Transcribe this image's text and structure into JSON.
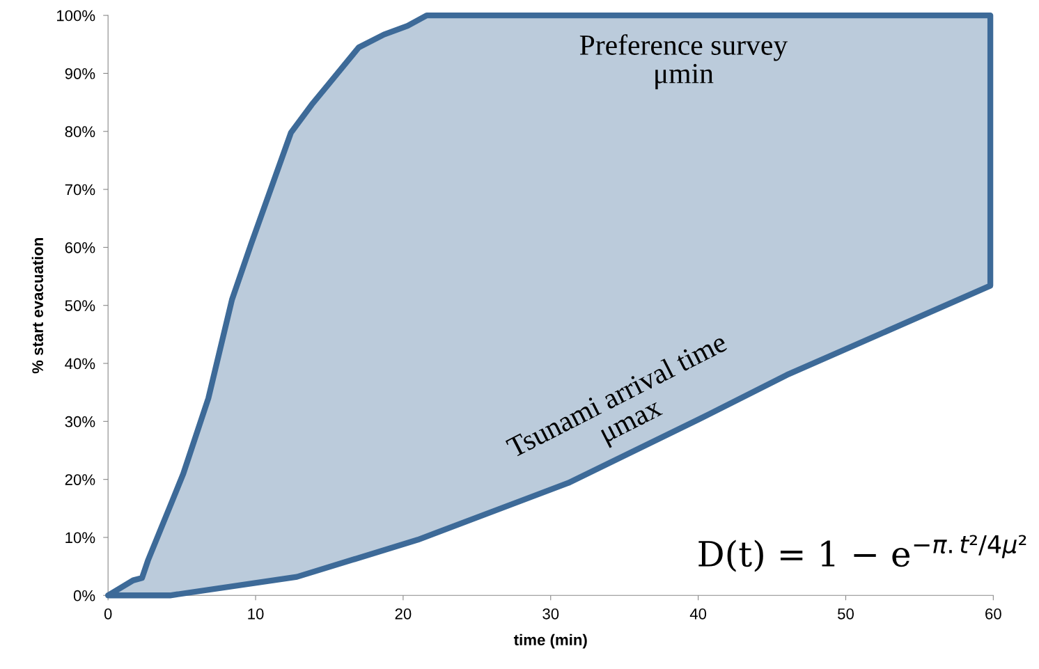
{
  "chart_data": {
    "type": "area",
    "xlabel": "time (min)",
    "ylabel": "% start evacuation",
    "xlim": [
      0,
      60
    ],
    "xticks": [
      0,
      10,
      20,
      30,
      40,
      50,
      60
    ],
    "ylim": [
      0,
      100
    ],
    "yticks": [
      {
        "value": 0,
        "label": "0%"
      },
      {
        "value": 10,
        "label": "10%"
      },
      {
        "value": 20,
        "label": "20%"
      },
      {
        "value": 30,
        "label": "30%"
      },
      {
        "value": 40,
        "label": "40%"
      },
      {
        "value": 50,
        "label": "50%"
      },
      {
        "value": 60,
        "label": "60%"
      },
      {
        "value": 70,
        "label": "70%"
      },
      {
        "value": 80,
        "label": "80%"
      },
      {
        "value": 90,
        "label": "90%"
      },
      {
        "value": 100,
        "label": "100%"
      }
    ],
    "grid": false,
    "legend": false,
    "series": [
      {
        "color": "#3d6a98",
        "x": [
          0,
          1.7,
          2.3,
          2.7,
          4.4,
          5.1,
          6.8,
          8.4,
          9.7,
          12.4,
          13.8,
          14.9,
          17,
          18.7,
          20.3,
          21.6,
          59.8,
          59.8,
          46,
          40,
          31.2,
          21,
          12.8,
          4.2,
          0
        ],
        "values": [
          0,
          2.6,
          3,
          6,
          16.6,
          21,
          34,
          51,
          60.6,
          79.8,
          84.6,
          88,
          94.5,
          96.7,
          98.2,
          100,
          100,
          53.4,
          38,
          30.3,
          19.4,
          9.6,
          3.2,
          0,
          0
        ]
      }
    ],
    "annotations": [
      "Preference survey\nμmin",
      "Tsunami arrival time\nμmax",
      "D(t) = 1 − e$^{−π.t²/4μ²}$"
    ]
  }
}
